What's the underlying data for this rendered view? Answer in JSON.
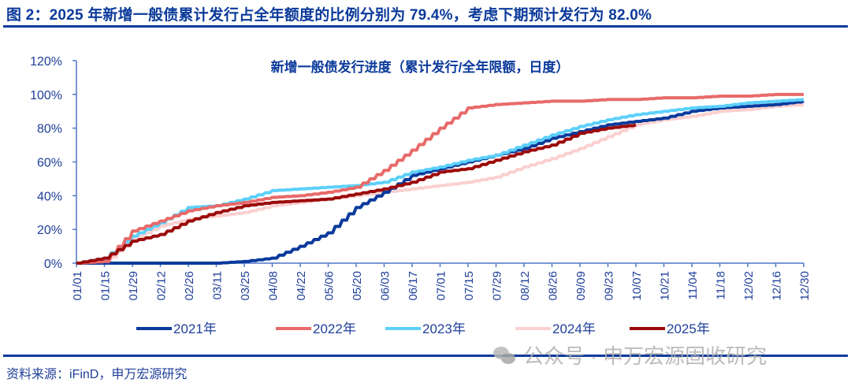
{
  "figure": {
    "title": "图 2：2025 年新增一般债累计发行占全年额度的比例分别为 79.4%，考虑下期预计发行为 82.0%",
    "source": "资料来源：iFinD，申万宏源研究",
    "watermark": "公众号 · 申万宏源固收研究"
  },
  "colors": {
    "title": "#0b3a9a",
    "axis": "#4f77c8",
    "tick_text": "#1f3f9a",
    "series_2021": "#0a3a9c",
    "series_2022": "#e86a6a",
    "series_2023": "#5cd0fa",
    "series_2024": "#fbd0d0",
    "series_2025": "#9c0a0a"
  },
  "chart_data": {
    "type": "line",
    "title": "新增一般债发行进度（累计发行/全年限额，日度）",
    "xlabel": "",
    "ylabel": "",
    "ylim": [
      0,
      120
    ],
    "yticks": [
      "0%",
      "20%",
      "40%",
      "60%",
      "80%",
      "100%",
      "120%"
    ],
    "grid": false,
    "legend_position": "bottom",
    "categories": [
      "01/01",
      "01/15",
      "01/29",
      "02/12",
      "02/26",
      "03/11",
      "03/25",
      "04/08",
      "04/22",
      "05/06",
      "05/20",
      "06/03",
      "06/17",
      "07/01",
      "07/15",
      "07/29",
      "08/12",
      "08/26",
      "09/09",
      "09/23",
      "10/07",
      "10/21",
      "11/04",
      "11/18",
      "12/02",
      "12/16",
      "12/30"
    ],
    "series": [
      {
        "name": "2021年",
        "values": [
          0,
          0,
          0,
          0,
          0,
          0,
          1,
          3,
          10,
          18,
          33,
          42,
          52,
          56,
          60,
          64,
          68,
          74,
          78,
          82,
          84,
          86,
          90,
          92,
          93,
          94,
          96
        ]
      },
      {
        "name": "2022年",
        "values": [
          0,
          1,
          19,
          25,
          31,
          34,
          36,
          39,
          40,
          42,
          45,
          55,
          67,
          80,
          92,
          94,
          95,
          96,
          96,
          97,
          97,
          98,
          98,
          99,
          99,
          100,
          100
        ]
      },
      {
        "name": "2023年",
        "values": [
          0,
          3,
          16,
          24,
          33,
          34,
          38,
          43,
          44,
          45,
          46,
          48,
          54,
          57,
          61,
          64,
          70,
          76,
          81,
          85,
          88,
          90,
          92,
          93,
          95,
          96,
          97
        ]
      },
      {
        "name": "2024年",
        "values": [
          0,
          0,
          14,
          22,
          26,
          28,
          30,
          34,
          36,
          38,
          40,
          42,
          44,
          46,
          48,
          51,
          57,
          62,
          68,
          75,
          82,
          85,
          87,
          90,
          91,
          93,
          94
        ]
      },
      {
        "name": "2025年",
        "values": [
          0,
          3,
          13,
          17,
          25,
          30,
          34,
          36,
          37,
          38,
          41,
          44,
          48,
          54,
          56,
          61,
          66,
          70,
          77,
          80,
          82
        ]
      }
    ]
  }
}
